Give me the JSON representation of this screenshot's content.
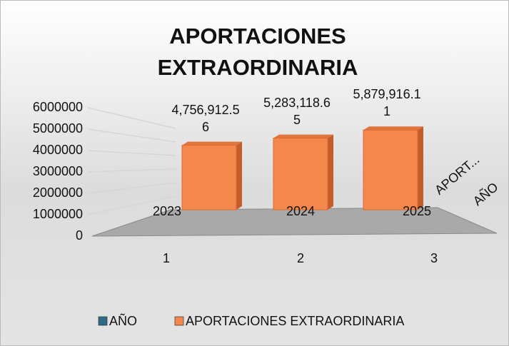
{
  "chart_data": {
    "type": "bar3d",
    "title": "APORTACIONES EXTRAORDINARIA",
    "categories": [
      "1",
      "2",
      "3"
    ],
    "series": [
      {
        "name": "AÑO",
        "color": "#2f6a86",
        "values": [
          2023,
          2024,
          2025
        ]
      },
      {
        "name": "APORTACIONES EXTRAORDINARIA",
        "color": "#f4874b",
        "values": [
          4756912.56,
          5283118.65,
          5879916.11
        ],
        "value_labels": [
          "4,756,912.56",
          "5,283,118.65",
          "5,879,916.11"
        ]
      }
    ],
    "depth_labels": [
      "AÑO",
      "APORT..."
    ],
    "ylim": [
      0,
      6000000
    ],
    "yticks": [
      0,
      1000000,
      2000000,
      3000000,
      4000000,
      5000000,
      6000000
    ],
    "grid": true,
    "legend": "bottom"
  }
}
